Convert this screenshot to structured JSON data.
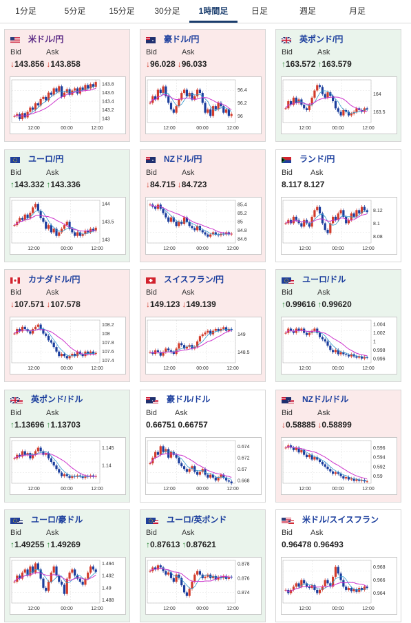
{
  "tabs": [
    {
      "label": "1分足",
      "active": false
    },
    {
      "label": "5分足",
      "active": false
    },
    {
      "label": "15分足",
      "active": false
    },
    {
      "label": "30分足",
      "active": false
    },
    {
      "label": "1時間足",
      "active": true
    },
    {
      "label": "日足",
      "active": false
    },
    {
      "label": "週足",
      "active": false
    },
    {
      "label": "月足",
      "active": false
    }
  ],
  "labels": {
    "bid": "Bid",
    "ask": "Ask"
  },
  "colors": {
    "down_bg": "#fbeaea",
    "up_bg": "#eaf4ec",
    "rise": "#d23b2b",
    "fall": "#1a3d9d",
    "ma": "#cc33cc",
    "ma2": "#3399cc"
  },
  "cards": [
    {
      "pair": "米ドル/円",
      "flag": "us",
      "trend": "down",
      "bid": "143.856",
      "ask": "143.858",
      "chart_data": {
        "type": "line",
        "y_ticks": [
          "143.8",
          "143.6",
          "143.4",
          "143.2",
          "143"
        ],
        "x_ticks": [
          "12:00",
          "00:00",
          "12:00"
        ],
        "ylim": [
          142.9,
          143.9
        ],
        "close": [
          143.05,
          143.1,
          142.98,
          143.12,
          143.02,
          143.15,
          143.25,
          143.2,
          143.35,
          143.3,
          143.45,
          143.5,
          143.42,
          143.6,
          143.55,
          143.7,
          143.62,
          143.75,
          143.5,
          143.6,
          143.68,
          143.55,
          143.65,
          143.7,
          143.58,
          143.72,
          143.66,
          143.78,
          143.7,
          143.8,
          143.74,
          143.85
        ]
      }
    },
    {
      "pair": "豪ドル/円",
      "flag": "au",
      "trend": "down",
      "bid": "96.028",
      "ask": "96.033",
      "chart_data": {
        "type": "line",
        "y_ticks": [
          "96.4",
          "96.2",
          "96"
        ],
        "x_ticks": [
          "12:00",
          "00:00",
          "12:00"
        ],
        "ylim": [
          95.9,
          96.55
        ],
        "close": [
          96.2,
          96.3,
          96.25,
          96.4,
          96.35,
          96.45,
          96.3,
          96.2,
          96.1,
          96.05,
          96.15,
          96.25,
          96.35,
          96.4,
          96.3,
          96.35,
          96.25,
          96.3,
          96.4,
          96.35,
          96.2,
          96.05,
          96.1,
          96.0,
          96.15,
          96.1,
          96.2,
          96.15,
          96.05,
          96.1,
          96.0,
          96.03
        ]
      }
    },
    {
      "pair": "英ポンド/円",
      "flag": "gb",
      "trend": "up",
      "bid": "163.572",
      "ask": "163.579",
      "chart_data": {
        "type": "line",
        "y_ticks": [
          "164",
          "163.5"
        ],
        "x_ticks": [
          "12:00",
          "00:00",
          "12:00"
        ],
        "ylim": [
          163.2,
          164.4
        ],
        "close": [
          163.6,
          163.8,
          163.7,
          163.9,
          163.75,
          163.85,
          163.7,
          163.6,
          163.55,
          163.7,
          163.9,
          164.1,
          164.25,
          164.2,
          164.0,
          163.9,
          164.05,
          163.95,
          163.8,
          163.6,
          163.5,
          163.4,
          163.55,
          163.5,
          163.4,
          163.45,
          163.5,
          163.6,
          163.55,
          163.5,
          163.6,
          163.57
        ]
      }
    },
    {
      "pair": "ユーロ/円",
      "flag": "eu",
      "trend": "up",
      "bid": "143.332",
      "ask": "143.336",
      "chart_data": {
        "type": "line",
        "y_ticks": [
          "144",
          "143.5",
          "143"
        ],
        "x_ticks": [
          "12:00",
          "00:00",
          "12:00"
        ],
        "ylim": [
          142.9,
          144.1
        ],
        "close": [
          143.4,
          143.5,
          143.6,
          143.55,
          143.7,
          143.6,
          143.75,
          143.9,
          144.0,
          143.8,
          143.6,
          143.5,
          143.3,
          143.4,
          143.2,
          143.3,
          143.1,
          143.2,
          143.3,
          143.4,
          143.5,
          143.3,
          143.2,
          143.1,
          143.2,
          143.1,
          143.15,
          143.25,
          143.2,
          143.3,
          143.25,
          143.33
        ]
      }
    },
    {
      "pair": "NZドル/円",
      "flag": "nz",
      "trend": "down",
      "bid": "84.715",
      "ask": "84.723",
      "chart_data": {
        "type": "line",
        "y_ticks": [
          "85.4",
          "85.2",
          "85",
          "84.8",
          "84.6"
        ],
        "x_ticks": [
          "12:00",
          "00:00",
          "12:00"
        ],
        "ylim": [
          84.5,
          85.5
        ],
        "close": [
          85.4,
          85.35,
          85.3,
          85.4,
          85.3,
          85.2,
          85.1,
          85.0,
          85.1,
          85.0,
          84.9,
          85.0,
          84.95,
          85.1,
          85.0,
          84.9,
          84.85,
          84.8,
          84.9,
          84.8,
          84.75,
          84.7,
          84.65,
          84.7,
          84.75,
          84.7,
          84.68,
          84.72,
          84.7,
          84.75,
          84.7,
          84.72
        ]
      }
    },
    {
      "pair": "ランド/円",
      "flag": "za",
      "trend": "flat",
      "bid": "8.117",
      "ask": "8.127",
      "chart_data": {
        "type": "line",
        "y_ticks": [
          "8.12",
          "8.1",
          "8.08"
        ],
        "x_ticks": [
          "12:00",
          "00:00",
          "12:00"
        ],
        "ylim": [
          8.07,
          8.135
        ],
        "close": [
          8.1,
          8.105,
          8.1,
          8.11,
          8.105,
          8.1,
          8.095,
          8.105,
          8.1,
          8.095,
          8.11,
          8.12,
          8.125,
          8.115,
          8.1,
          8.09,
          8.085,
          8.1,
          8.11,
          8.105,
          8.115,
          8.12,
          8.11,
          8.1,
          8.105,
          8.115,
          8.11,
          8.12,
          8.115,
          8.125,
          8.12,
          8.117
        ]
      }
    },
    {
      "pair": "カナダドル/円",
      "flag": "ca",
      "trend": "down",
      "bid": "107.571",
      "ask": "107.578",
      "chart_data": {
        "type": "line",
        "y_ticks": [
          "108.2",
          "108",
          "107.8",
          "107.6",
          "107.4"
        ],
        "x_ticks": [
          "12:00",
          "00:00",
          "12:00"
        ],
        "ylim": [
          107.35,
          108.3
        ],
        "close": [
          108.0,
          108.1,
          108.05,
          108.15,
          108.1,
          108.05,
          108.0,
          108.1,
          108.15,
          108.2,
          108.1,
          108.0,
          107.95,
          107.85,
          107.8,
          107.7,
          107.6,
          107.5,
          107.55,
          107.5,
          107.45,
          107.5,
          107.55,
          107.5,
          107.6,
          107.55,
          107.5,
          107.6,
          107.55,
          107.6,
          107.55,
          107.57
        ]
      }
    },
    {
      "pair": "スイスフラン/円",
      "flag": "ch",
      "trend": "down",
      "bid": "149.123",
      "ask": "149.139",
      "chart_data": {
        "type": "line",
        "y_ticks": [
          "149",
          "148.5"
        ],
        "x_ticks": [
          "12:00",
          "00:00",
          "12:00"
        ],
        "ylim": [
          148.2,
          149.4
        ],
        "close": [
          148.5,
          148.45,
          148.55,
          148.5,
          148.4,
          148.5,
          148.6,
          148.55,
          148.5,
          148.45,
          148.6,
          148.75,
          148.7,
          148.6,
          148.65,
          148.7,
          148.6,
          148.65,
          148.8,
          148.95,
          149.0,
          149.05,
          149.1,
          149.0,
          149.1,
          149.15,
          149.1,
          149.15,
          149.2,
          149.1,
          149.15,
          149.12
        ]
      }
    },
    {
      "pair": "ユーロ/ドル",
      "flag": "euus",
      "trend": "up",
      "bid": "0.99616",
      "ask": "0.99620",
      "chart_data": {
        "type": "line",
        "y_ticks": [
          "1.004",
          "1.002",
          "1",
          "0.998",
          "0.996"
        ],
        "x_ticks": [
          "12:00",
          "00:00",
          "12:00"
        ],
        "ylim": [
          0.995,
          1.005
        ],
        "close": [
          1.002,
          1.003,
          1.0025,
          1.002,
          1.003,
          1.0025,
          1.003,
          1.002,
          1.0015,
          1.002,
          1.0025,
          1.003,
          1.002,
          1.001,
          1.0005,
          1.0,
          0.999,
          0.998,
          0.9975,
          0.998,
          0.997,
          0.9975,
          0.997,
          0.9968,
          0.9965,
          0.997,
          0.9965,
          0.9962,
          0.9965,
          0.996,
          0.9963,
          0.9962
        ]
      }
    },
    {
      "pair": "英ポンド/ドル",
      "flag": "gbus",
      "trend": "up",
      "bid": "1.13696",
      "ask": "1.13703",
      "chart_data": {
        "type": "line",
        "y_ticks": [
          "1.145",
          "1.14"
        ],
        "x_ticks": [
          "12:00",
          "00:00",
          "12:00"
        ],
        "ylim": [
          1.135,
          1.147
        ],
        "close": [
          1.142,
          1.143,
          1.1425,
          1.144,
          1.143,
          1.1435,
          1.142,
          1.143,
          1.144,
          1.145,
          1.144,
          1.143,
          1.1435,
          1.142,
          1.141,
          1.14,
          1.139,
          1.138,
          1.137,
          1.1375,
          1.137,
          1.1365,
          1.137,
          1.1368,
          1.1372,
          1.137,
          1.1365,
          1.137,
          1.1368,
          1.1372,
          1.1368,
          1.137
        ]
      }
    },
    {
      "pair": "豪ドル/ドル",
      "flag": "auus",
      "trend": "flat",
      "bid": "0.66751",
      "ask": "0.66757",
      "chart_data": {
        "type": "line",
        "y_ticks": [
          "0.674",
          "0.672",
          "0.67",
          "0.668"
        ],
        "x_ticks": [
          "12:00",
          "00:00",
          "12:00"
        ],
        "ylim": [
          0.6675,
          0.675
        ],
        "close": [
          0.671,
          0.672,
          0.673,
          0.6725,
          0.674,
          0.673,
          0.6735,
          0.672,
          0.673,
          0.6725,
          0.672,
          0.671,
          0.6705,
          0.67,
          0.6695,
          0.67,
          0.6705,
          0.6695,
          0.669,
          0.6695,
          0.67,
          0.669,
          0.6685,
          0.669,
          0.6685,
          0.668,
          0.6685,
          0.669,
          0.6685,
          0.668,
          0.6678,
          0.6675
        ]
      }
    },
    {
      "pair": "NZドル/ドル",
      "flag": "nzus",
      "trend": "down",
      "bid": "0.58885",
      "ask": "0.58899",
      "chart_data": {
        "type": "line",
        "y_ticks": [
          "0.596",
          "0.594",
          "0.592",
          "0.59"
        ],
        "x_ticks": [
          "12:00",
          "00:00",
          "12:00"
        ],
        "ylim": [
          0.5885,
          0.5975
        ],
        "close": [
          0.596,
          0.5965,
          0.596,
          0.5955,
          0.596,
          0.595,
          0.5955,
          0.5945,
          0.594,
          0.5945,
          0.5935,
          0.594,
          0.5935,
          0.593,
          0.5925,
          0.592,
          0.5915,
          0.591,
          0.5905,
          0.5908,
          0.5905,
          0.59,
          0.5895,
          0.5898,
          0.5893,
          0.5895,
          0.589,
          0.5893,
          0.589,
          0.5892,
          0.5889,
          0.5889
        ]
      }
    },
    {
      "pair": "ユーロ/豪ドル",
      "flag": "euau",
      "trend": "up",
      "bid": "1.49255",
      "ask": "1.49269",
      "chart_data": {
        "type": "line",
        "y_ticks": [
          "1.494",
          "1.492",
          "1.49",
          "1.488"
        ],
        "x_ticks": [
          "12:00",
          "00:00",
          "12:00"
        ],
        "ylim": [
          1.4875,
          1.4945
        ],
        "close": [
          1.491,
          1.492,
          1.4915,
          1.4925,
          1.493,
          1.492,
          1.4935,
          1.4925,
          1.494,
          1.493,
          1.4915,
          1.49,
          1.4895,
          1.491,
          1.4925,
          1.4935,
          1.492,
          1.491,
          1.4905,
          1.489,
          1.4915,
          1.4925,
          1.493,
          1.492,
          1.4915,
          1.491,
          1.4905,
          1.4915,
          1.4925,
          1.4935,
          1.493,
          1.4926
        ]
      }
    },
    {
      "pair": "ユーロ/英ポンド",
      "flag": "eugb",
      "trend": "up",
      "bid": "0.87613",
      "ask": "0.87621",
      "chart_data": {
        "type": "line",
        "y_ticks": [
          "0.878",
          "0.876",
          "0.874"
        ],
        "x_ticks": [
          "12:00",
          "00:00",
          "12:00"
        ],
        "ylim": [
          0.8725,
          0.8785
        ],
        "close": [
          0.877,
          0.8775,
          0.8772,
          0.8778,
          0.8775,
          0.877,
          0.8765,
          0.8768,
          0.876,
          0.8755,
          0.8765,
          0.876,
          0.875,
          0.874,
          0.8735,
          0.8745,
          0.8755,
          0.8765,
          0.877,
          0.8765,
          0.876,
          0.8762,
          0.8765,
          0.876,
          0.8763,
          0.8758,
          0.8762,
          0.876,
          0.8763,
          0.8759,
          0.8762,
          0.8761
        ]
      }
    },
    {
      "pair": "米ドル/スイスフラン",
      "flag": "usch",
      "trend": "flat",
      "bid": "0.96478",
      "ask": "0.96493",
      "chart_data": {
        "type": "line",
        "y_ticks": [
          "0.968",
          "0.966",
          "0.964"
        ],
        "x_ticks": [
          "12:00",
          "00:00",
          "12:00"
        ],
        "ylim": [
          0.9625,
          0.969
        ],
        "close": [
          0.9645,
          0.964,
          0.9645,
          0.965,
          0.9655,
          0.965,
          0.966,
          0.9655,
          0.965,
          0.9648,
          0.9652,
          0.9645,
          0.964,
          0.9645,
          0.965,
          0.966,
          0.9655,
          0.965,
          0.9665,
          0.968,
          0.967,
          0.966,
          0.965,
          0.9645,
          0.9648,
          0.9643,
          0.9646,
          0.9642,
          0.9648,
          0.9645,
          0.965,
          0.9648
        ]
      }
    }
  ]
}
